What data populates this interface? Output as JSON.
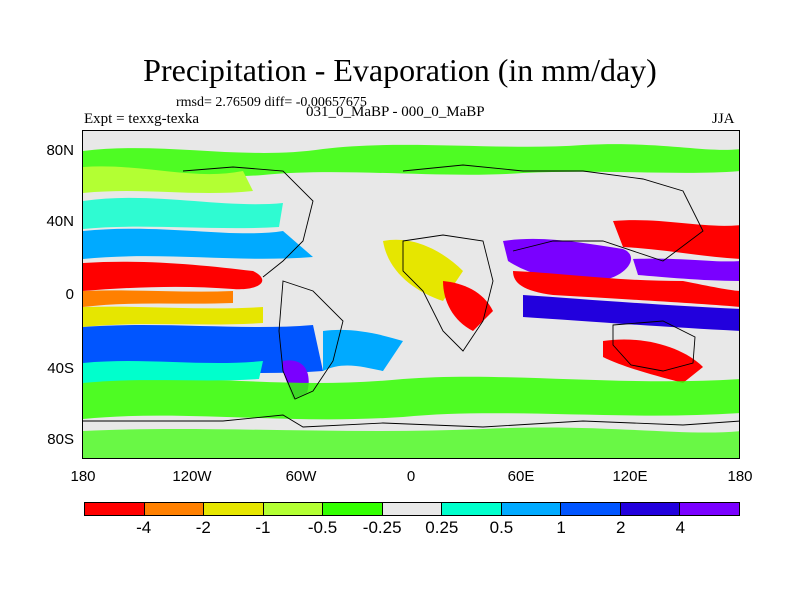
{
  "title": "Precipitation - Evaporation (in mm/day)",
  "stats": "rmsd= 2.76509 diff= -0.00657675",
  "experiment": "Expt = texxg-texka",
  "runs": "031_0_MaBP - 000_0_MaBP",
  "season": "JJA",
  "axes": {
    "lat_ticks": [
      "80N",
      "40N",
      "0",
      "40S",
      "80S"
    ],
    "lon_ticks": [
      "180",
      "120W",
      "60W",
      "0",
      "60E",
      "120E",
      "180"
    ]
  },
  "colorbar": {
    "colors": [
      "#ff0000",
      "#ff8000",
      "#e6e600",
      "#b3ff33",
      "#33ff00",
      "#e8e8e8",
      "#00ffcc",
      "#00aaff",
      "#0055ff",
      "#2200dd",
      "#7a00ff"
    ],
    "labels": [
      "-4",
      "-2",
      "-1",
      "-0.5",
      "-0.25",
      "0.25",
      "0.5",
      "1",
      "2",
      "4"
    ]
  },
  "map_regions": [
    {
      "name": "arctic-green-band",
      "color": "#33ff00"
    },
    {
      "name": "north-pacific-green",
      "color": "#b3ff33"
    },
    {
      "name": "subtropical-north-blue",
      "color": "#00aaff"
    },
    {
      "name": "pacific-itcz-red",
      "color": "#ff0000"
    },
    {
      "name": "indian-ocean-red",
      "color": "#ff0000"
    },
    {
      "name": "india-purple",
      "color": "#7a00ff"
    },
    {
      "name": "south-pacific-blue",
      "color": "#0055ff"
    },
    {
      "name": "southern-ocean-green",
      "color": "#33ff00"
    },
    {
      "name": "atlantic-yellow",
      "color": "#e6e600"
    },
    {
      "name": "cyan-patches",
      "color": "#00ffcc"
    },
    {
      "name": "antarctic-green",
      "color": "#33ff00"
    }
  ]
}
